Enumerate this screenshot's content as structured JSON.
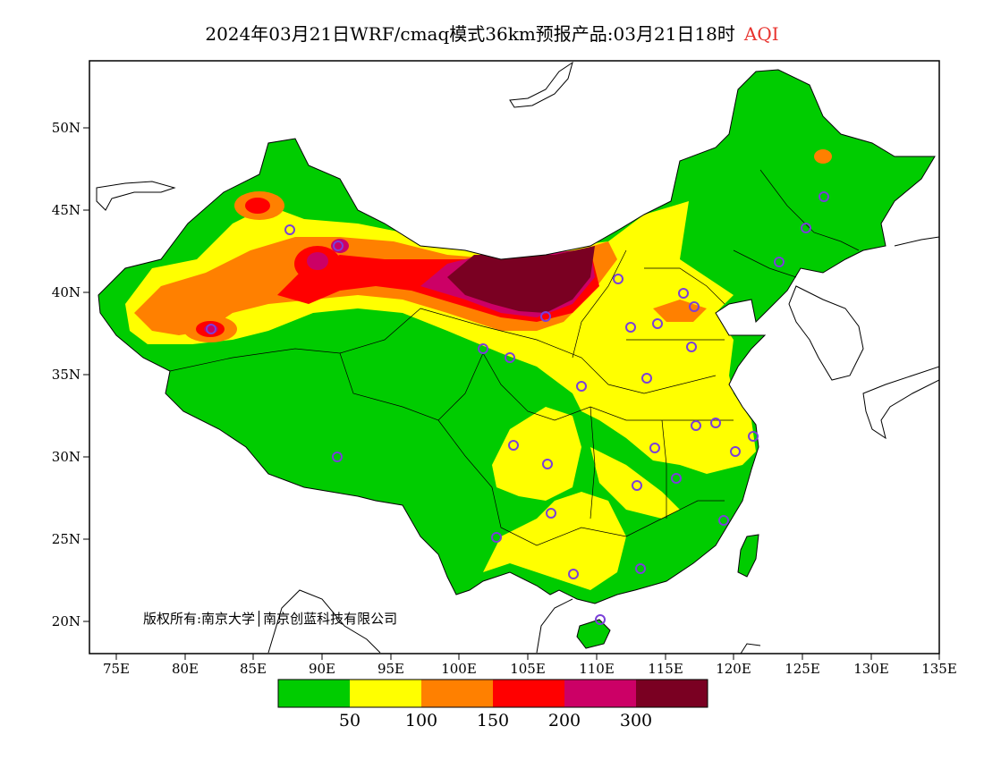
{
  "title": {
    "main": "2024年03月21日WRF/cmaq模式36km预报产品:03月21日18时",
    "variable": "AQI",
    "variable_color": "#e8332e"
  },
  "axes": {
    "lat_labels": [
      "50N",
      "45N",
      "40N",
      "35N",
      "30N",
      "25N",
      "20N"
    ],
    "lon_labels": [
      "75E",
      "80E",
      "85E",
      "90E",
      "95E",
      "100E",
      "105E",
      "110E",
      "115E",
      "120E",
      "125E",
      "130E",
      "135E"
    ]
  },
  "copyright": "版权所有:南京大学│南京创蓝科技有限公司",
  "legend": {
    "colors": [
      "#00cc00",
      "#ffff00",
      "#ff8000",
      "#ff0000",
      "#cc0066",
      "#7a0022"
    ],
    "labels": [
      "50",
      "100",
      "150",
      "200",
      "300"
    ]
  },
  "colors": {
    "good": "#00cc00",
    "moderate": "#ffff00",
    "unhealthy_sensitive": "#ff8000",
    "unhealthy": "#ff0000",
    "very_unhealthy": "#cc0066",
    "hazardous": "#7a0022",
    "station_marker": "#7a3fd9"
  }
}
